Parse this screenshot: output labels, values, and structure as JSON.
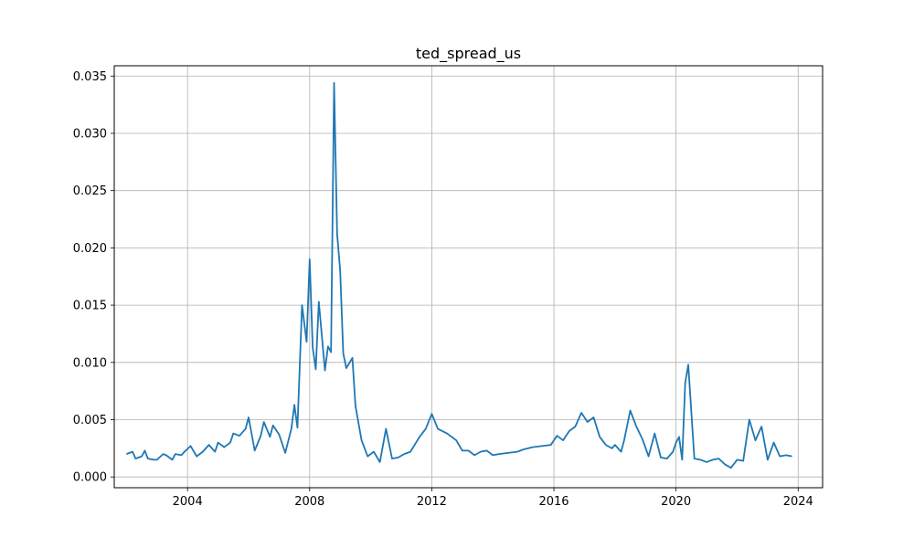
{
  "chart_data": {
    "type": "line",
    "title": "ted_spread_us",
    "xlabel": "",
    "ylabel": "",
    "grid": true,
    "xlim": [
      2001.6,
      2024.8
    ],
    "ylim": [
      -0.00094,
      0.0359
    ],
    "x_ticks": [
      2004,
      2008,
      2012,
      2016,
      2020,
      2024
    ],
    "x_tick_labels": [
      "2004",
      "2008",
      "2012",
      "2016",
      "2020",
      "2024"
    ],
    "y_ticks": [
      0.0,
      0.005,
      0.01,
      0.015,
      0.02,
      0.025,
      0.03,
      0.035
    ],
    "y_tick_labels": [
      "0.000",
      "0.005",
      "0.010",
      "0.015",
      "0.020",
      "0.025",
      "0.030",
      "0.035"
    ],
    "series": [
      {
        "color": "#1f77b4",
        "x": [
          2002.0,
          2002.2,
          2002.3,
          2002.5,
          2002.6,
          2002.7,
          2002.9,
          2003.0,
          2003.2,
          2003.3,
          2003.5,
          2003.6,
          2003.8,
          2003.9,
          2004.1,
          2004.3,
          2004.5,
          2004.7,
          2004.9,
          2005.0,
          2005.2,
          2005.4,
          2005.5,
          2005.7,
          2005.9,
          2006.0,
          2006.2,
          2006.4,
          2006.5,
          2006.7,
          2006.8,
          2007.0,
          2007.2,
          2007.4,
          2007.5,
          2007.6,
          2007.75,
          2007.9,
          2008.0,
          2008.1,
          2008.2,
          2008.3,
          2008.5,
          2008.6,
          2008.7,
          2008.8,
          2008.9,
          2009.0,
          2009.1,
          2009.2,
          2009.4,
          2009.5,
          2009.7,
          2009.9,
          2010.1,
          2010.3,
          2010.5,
          2010.7,
          2010.9,
          2011.1,
          2011.3,
          2011.6,
          2011.8,
          2012.0,
          2012.2,
          2012.5,
          2012.8,
          2013.0,
          2013.2,
          2013.4,
          2013.6,
          2013.8,
          2014.0,
          2014.2,
          2014.5,
          2014.8,
          2015.0,
          2015.3,
          2015.6,
          2015.9,
          2016.1,
          2016.3,
          2016.5,
          2016.7,
          2016.9,
          2017.1,
          2017.3,
          2017.5,
          2017.7,
          2017.9,
          2018.0,
          2018.2,
          2018.3,
          2018.5,
          2018.7,
          2018.9,
          2019.1,
          2019.3,
          2019.5,
          2019.7,
          2019.9,
          2020.0,
          2020.1,
          2020.2,
          2020.3,
          2020.4,
          2020.6,
          2020.8,
          2021.0,
          2021.2,
          2021.4,
          2021.6,
          2021.8,
          2022.0,
          2022.2,
          2022.4,
          2022.6,
          2022.8,
          2023.0,
          2023.2,
          2023.4,
          2023.6,
          2023.8
        ],
        "y": [
          0.002,
          0.0022,
          0.0016,
          0.0018,
          0.0023,
          0.0016,
          0.0015,
          0.0015,
          0.002,
          0.0019,
          0.0015,
          0.002,
          0.0019,
          0.0022,
          0.0027,
          0.0018,
          0.0022,
          0.0028,
          0.0022,
          0.003,
          0.0026,
          0.003,
          0.0038,
          0.0036,
          0.0042,
          0.0052,
          0.0023,
          0.0036,
          0.0048,
          0.0035,
          0.0045,
          0.0037,
          0.0021,
          0.0042,
          0.0063,
          0.0043,
          0.015,
          0.0118,
          0.019,
          0.0113,
          0.0094,
          0.0153,
          0.0093,
          0.0114,
          0.0109,
          0.0344,
          0.0212,
          0.018,
          0.0108,
          0.0095,
          0.0104,
          0.0062,
          0.0032,
          0.0018,
          0.0022,
          0.0013,
          0.0042,
          0.0016,
          0.0017,
          0.002,
          0.0022,
          0.0035,
          0.0042,
          0.0055,
          0.0042,
          0.0038,
          0.0032,
          0.0023,
          0.0023,
          0.0019,
          0.0022,
          0.0023,
          0.0019,
          0.002,
          0.0021,
          0.0022,
          0.0024,
          0.0026,
          0.0027,
          0.0028,
          0.0036,
          0.0032,
          0.004,
          0.0044,
          0.0056,
          0.0048,
          0.0052,
          0.0035,
          0.0028,
          0.0025,
          0.0028,
          0.0022,
          0.0032,
          0.0058,
          0.0044,
          0.0033,
          0.0018,
          0.0038,
          0.0017,
          0.0016,
          0.0022,
          0.003,
          0.0035,
          0.0015,
          0.0082,
          0.0098,
          0.0016,
          0.0015,
          0.0013,
          0.0015,
          0.0016,
          0.0011,
          0.0008,
          0.0015,
          0.0014,
          0.005,
          0.0032,
          0.0044,
          0.0015,
          0.003,
          0.0018,
          0.0019,
          0.0018
        ]
      }
    ]
  }
}
